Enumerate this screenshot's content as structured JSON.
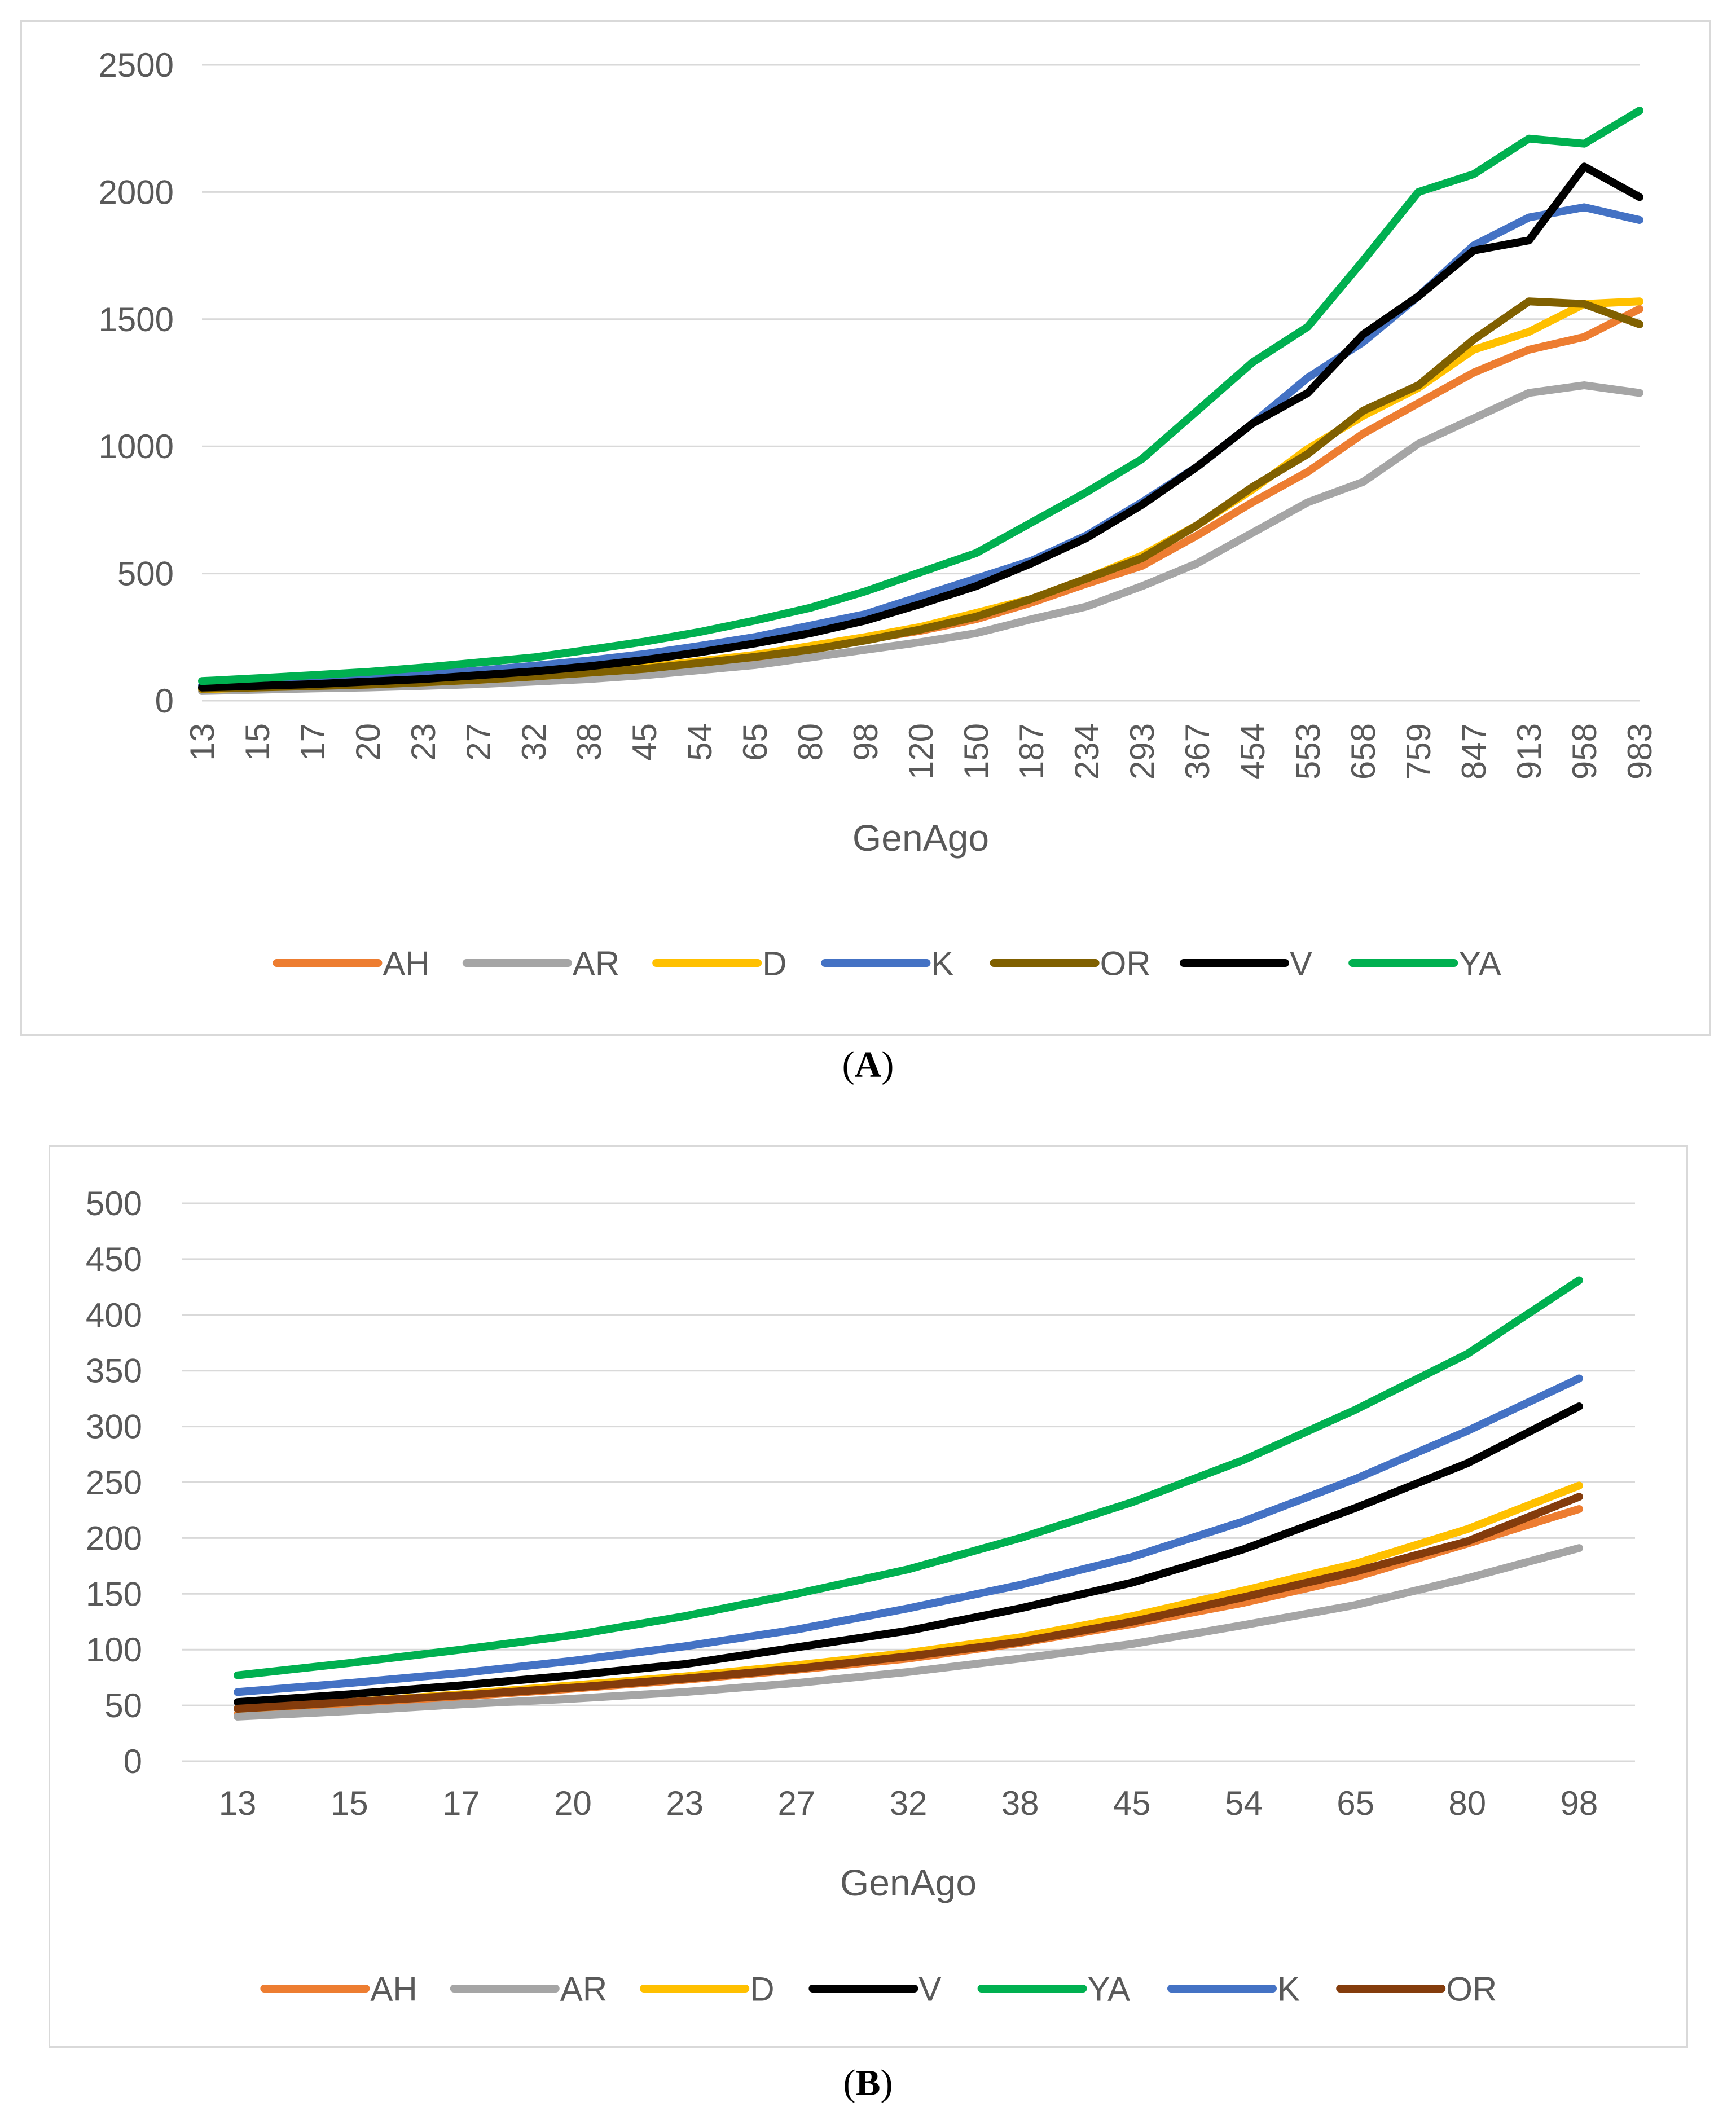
{
  "chart_data": [
    {
      "id": "A",
      "type": "line",
      "caption_open": "(",
      "caption_letter": "A",
      "caption_close": ")",
      "xlabel": "GenAgo",
      "ylabel": "",
      "ylim": [
        0,
        2500
      ],
      "yticks": [
        0,
        500,
        1000,
        1500,
        2000,
        2500
      ],
      "grid": true,
      "legend_position": "bottom",
      "categories": [
        "13",
        "15",
        "17",
        "20",
        "23",
        "27",
        "32",
        "38",
        "45",
        "54",
        "65",
        "80",
        "98",
        "120",
        "150",
        "187",
        "234",
        "293",
        "367",
        "454",
        "553",
        "658",
        "759",
        "847",
        "913",
        "958",
        "983"
      ],
      "series": [
        {
          "name": "AH",
          "color": "#ED7D31",
          "values": [
            40,
            45,
            50,
            55,
            60,
            70,
            80,
            95,
            110,
            130,
            160,
            200,
            240,
            275,
            320,
            385,
            460,
            530,
            650,
            780,
            900,
            1050,
            1170,
            1290,
            1380,
            1430,
            1540
          ]
        },
        {
          "name": "AR",
          "color": "#A5A5A5",
          "values": [
            38,
            43,
            48,
            52,
            58,
            65,
            75,
            85,
            100,
            120,
            140,
            170,
            200,
            230,
            265,
            320,
            370,
            450,
            540,
            660,
            780,
            860,
            1010,
            1110,
            1210,
            1240,
            1210
          ]
        },
        {
          "name": "D",
          "color": "#FFC000",
          "values": [
            45,
            52,
            58,
            65,
            72,
            82,
            95,
            110,
            130,
            155,
            180,
            215,
            250,
            290,
            345,
            400,
            480,
            570,
            690,
            830,
            990,
            1120,
            1230,
            1380,
            1450,
            1560,
            1570
          ]
        },
        {
          "name": "K",
          "color": "#4472C4",
          "values": [
            60,
            68,
            78,
            90,
            103,
            118,
            137,
            158,
            183,
            215,
            250,
            295,
            340,
            410,
            480,
            550,
            650,
            780,
            920,
            1090,
            1270,
            1410,
            1590,
            1790,
            1900,
            1940,
            1890
          ]
        },
        {
          "name": "OR",
          "color": "#806000",
          "values": [
            47,
            52,
            57,
            63,
            72,
            82,
            95,
            110,
            125,
            148,
            172,
            200,
            237,
            280,
            330,
            400,
            480,
            560,
            690,
            840,
            970,
            1140,
            1240,
            1420,
            1570,
            1560,
            1480
          ]
        },
        {
          "name": "V",
          "color": "#000000",
          "values": [
            52,
            58,
            65,
            75,
            85,
            100,
            115,
            135,
            160,
            190,
            225,
            265,
            315,
            380,
            450,
            540,
            640,
            770,
            920,
            1090,
            1210,
            1440,
            1590,
            1770,
            1810,
            2100,
            1980
          ]
        },
        {
          "name": "YA",
          "color": "#00B050",
          "values": [
            77,
            88,
            100,
            113,
            130,
            150,
            170,
            200,
            232,
            270,
            315,
            365,
            430,
            505,
            580,
            700,
            820,
            950,
            1140,
            1330,
            1470,
            1730,
            2000,
            2070,
            2210,
            2190,
            2320
          ]
        }
      ]
    },
    {
      "id": "B",
      "type": "line",
      "caption_open": "(",
      "caption_letter": "B",
      "caption_close": ")",
      "xlabel": "GenAgo",
      "ylabel": "",
      "ylim": [
        0,
        500
      ],
      "yticks": [
        0,
        50,
        100,
        150,
        200,
        250,
        300,
        350,
        400,
        450,
        500
      ],
      "grid": true,
      "legend_position": "bottom",
      "categories": [
        "13",
        "15",
        "17",
        "20",
        "23",
        "27",
        "32",
        "38",
        "45",
        "54",
        "65",
        "80",
        "98"
      ],
      "series": [
        {
          "name": "AH",
          "color": "#ED7D31",
          "values": [
            42,
            50,
            58,
            65,
            73,
            82,
            92,
            106,
            123,
            142,
            165,
            195,
            226
          ]
        },
        {
          "name": "AR",
          "color": "#A5A5A5",
          "values": [
            40,
            45,
            51,
            56,
            62,
            70,
            80,
            92,
            105,
            122,
            140,
            164,
            191
          ]
        },
        {
          "name": "D",
          "color": "#FFC000",
          "values": [
            47,
            53,
            60,
            68,
            76,
            86,
            97,
            111,
            130,
            153,
            177,
            208,
            247
          ]
        },
        {
          "name": "V",
          "color": "#000000",
          "values": [
            53,
            60,
            68,
            77,
            87,
            102,
            117,
            137,
            160,
            190,
            227,
            267,
            318
          ]
        },
        {
          "name": "YA",
          "color": "#00B050",
          "values": [
            77,
            88,
            100,
            113,
            130,
            150,
            172,
            200,
            232,
            270,
            315,
            365,
            431
          ]
        },
        {
          "name": "K",
          "color": "#4472C4",
          "values": [
            62,
            70,
            79,
            90,
            103,
            118,
            137,
            158,
            183,
            215,
            253,
            296,
            343
          ]
        },
        {
          "name": "OR",
          "color": "#843C0C",
          "values": [
            47,
            53,
            59,
            66,
            74,
            83,
            94,
            107,
            125,
            147,
            170,
            197,
            237
          ]
        }
      ]
    }
  ]
}
